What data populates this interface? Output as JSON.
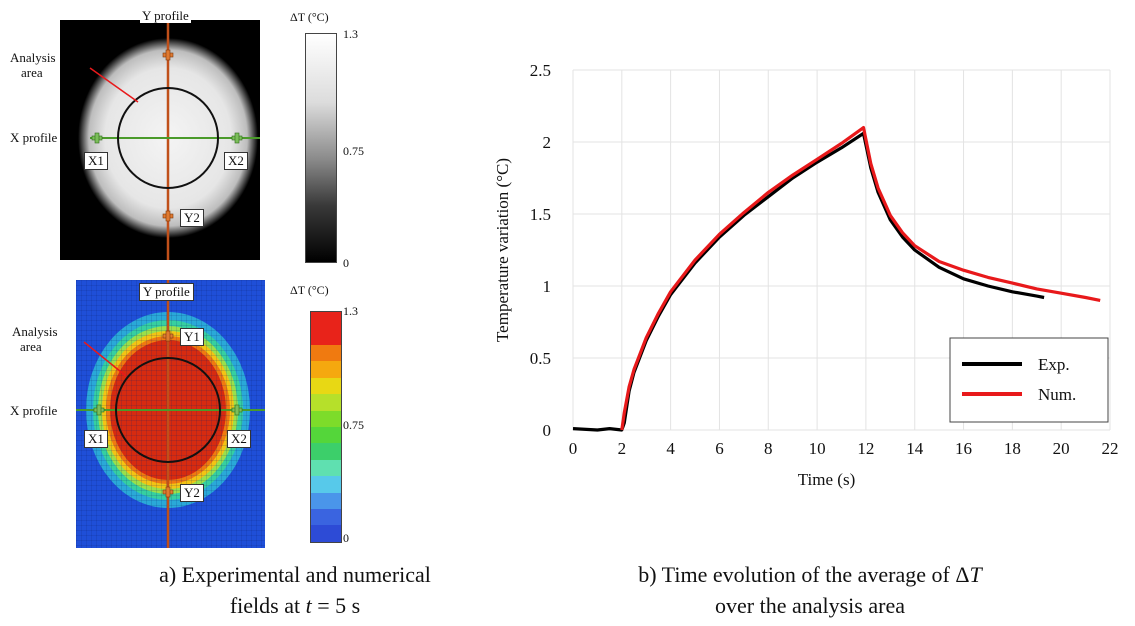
{
  "fields": {
    "experimental": {
      "y_profile": "Y profile",
      "x_profile": "X profile",
      "analysis_area": [
        "Analysis",
        "area"
      ],
      "points": [
        "X1",
        "X2",
        "Y2"
      ]
    },
    "numerical": {
      "y_profile": "Y profile",
      "x_profile": "X profile",
      "analysis_area": [
        "Analysis",
        "area"
      ],
      "points": [
        "Y1",
        "X1",
        "X2",
        "Y2"
      ]
    },
    "colorbar": {
      "title": "ΔT (°C)",
      "ticks": [
        "1.3",
        "0.75",
        "0"
      ]
    }
  },
  "captions": {
    "a_line1": "a) Experimental and numerical",
    "a_line2": "fields at t = 5 s",
    "b_line1": "b) Time evolution of the average of ΔT",
    "b_line2": "over the analysis area"
  },
  "colors": {
    "profile_line": "#c0501a",
    "x_profile_line": "#4a9a2a",
    "exp_series": "#000000",
    "num_series": "#e8191b"
  },
  "chart_data": {
    "type": "line",
    "xlabel": "Time (s)",
    "ylabel": "Temperature variation (°C)",
    "xlim": [
      0,
      22
    ],
    "ylim": [
      0,
      2.5
    ],
    "xticks": [
      "0",
      "2",
      "4",
      "6",
      "8",
      "10",
      "12",
      "14",
      "16",
      "18",
      "20",
      "22"
    ],
    "yticks": [
      "0",
      "0.5",
      "1",
      "1.5",
      "2",
      "2.5"
    ],
    "grid": true,
    "legend": "bottom-right",
    "series": [
      {
        "name": "Exp.",
        "color": "#000000",
        "x": [
          0,
          1,
          1.5,
          2.0,
          2.1,
          2.3,
          2.5,
          3,
          3.5,
          4,
          5,
          6,
          7,
          8,
          9,
          10,
          11,
          11.9,
          12.2,
          12.5,
          13,
          13.5,
          14,
          15,
          16,
          17,
          18,
          19,
          19.3
        ],
        "y": [
          0.01,
          0.0,
          0.01,
          0.0,
          0.05,
          0.27,
          0.4,
          0.62,
          0.79,
          0.94,
          1.16,
          1.34,
          1.49,
          1.62,
          1.75,
          1.86,
          1.96,
          2.06,
          1.82,
          1.65,
          1.46,
          1.34,
          1.25,
          1.13,
          1.05,
          1.0,
          0.96,
          0.93,
          0.92
        ]
      },
      {
        "name": "Num.",
        "color": "#e8191b",
        "x": [
          2.0,
          2.1,
          2.3,
          2.5,
          3,
          3.5,
          4,
          5,
          6,
          7,
          8,
          9,
          10,
          11,
          11.9,
          12.2,
          12.5,
          13,
          13.5,
          14,
          15,
          16,
          17,
          18,
          19,
          20,
          21,
          21.6
        ],
        "y": [
          0.0,
          0.12,
          0.3,
          0.42,
          0.64,
          0.81,
          0.96,
          1.18,
          1.36,
          1.51,
          1.65,
          1.77,
          1.88,
          1.99,
          2.1,
          1.85,
          1.68,
          1.49,
          1.37,
          1.28,
          1.17,
          1.11,
          1.06,
          1.02,
          0.98,
          0.95,
          0.92,
          0.9
        ]
      }
    ]
  }
}
